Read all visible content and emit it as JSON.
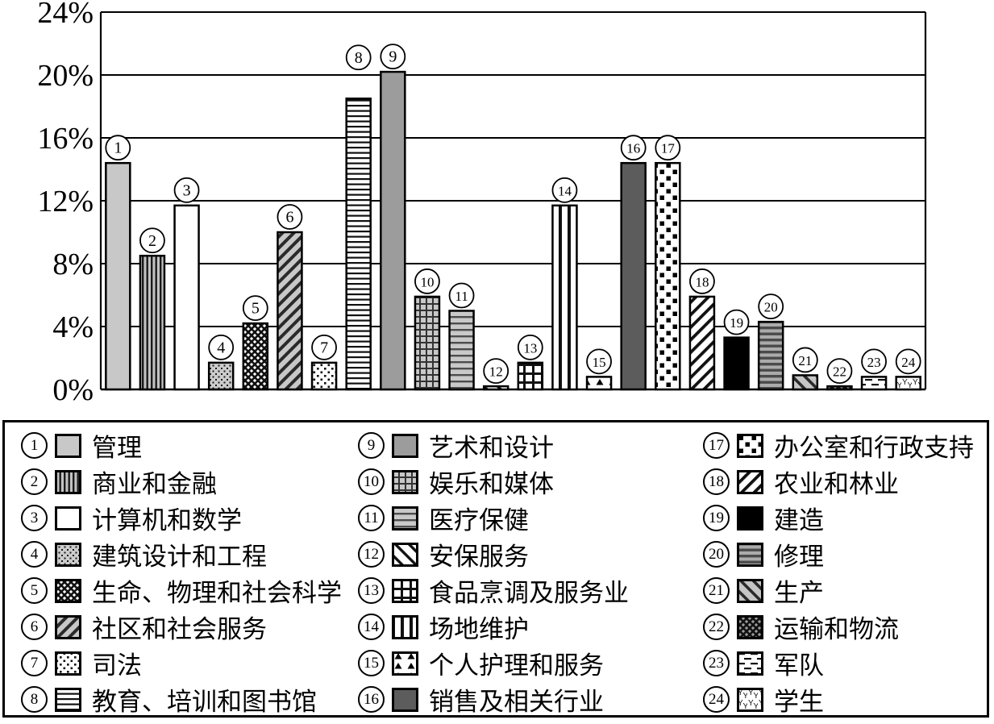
{
  "page": {
    "background": "#ffffff",
    "ink_color": "#000000"
  },
  "chart_data": {
    "type": "bar",
    "title": "",
    "xlabel": "",
    "ylabel": "",
    "ylim": [
      0,
      24
    ],
    "ytick_step": 4,
    "ytick_labels": [
      "0%",
      "4%",
      "8%",
      "12%",
      "16%",
      "20%",
      "24%"
    ],
    "grid": true,
    "legend_position": "bottom-box",
    "bar_outline_color": "#000000",
    "categories": [
      1,
      2,
      3,
      4,
      5,
      6,
      7,
      8,
      9,
      10,
      11,
      12,
      13,
      14,
      15,
      16,
      17,
      18,
      19,
      20,
      21,
      22,
      23,
      24
    ],
    "items": [
      {
        "n": 1,
        "label": "管理",
        "value": 14.4,
        "fill": "#c8c8c8"
      },
      {
        "n": 2,
        "label": "商业和金融",
        "value": 8.5,
        "fill": "vstripe-gray"
      },
      {
        "n": 3,
        "label": "计算机和数学",
        "value": 11.7,
        "fill": "#ffffff"
      },
      {
        "n": 4,
        "label": "建筑设计和工程",
        "value": 1.7,
        "fill": "dots-gray"
      },
      {
        "n": 5,
        "label": "生命、物理和社会科学",
        "value": 4.2,
        "fill": "crosshatch-white"
      },
      {
        "n": 6,
        "label": "社区和社会服务",
        "value": 10.0,
        "fill": "diag-gray"
      },
      {
        "n": 7,
        "label": "司法",
        "value": 1.7,
        "fill": "dots-white"
      },
      {
        "n": 8,
        "label": "教育、培训和图书馆",
        "value": 18.5,
        "fill": "hlines-white"
      },
      {
        "n": 9,
        "label": "艺术和设计",
        "value": 20.2,
        "fill": "#9c9c9c"
      },
      {
        "n": 10,
        "label": "娱乐和媒体",
        "value": 5.9,
        "fill": "grid-gray"
      },
      {
        "n": 11,
        "label": "医疗保健",
        "value": 5.0,
        "fill": "hlines-gray"
      },
      {
        "n": 12,
        "label": "安保服务",
        "value": 0.2,
        "fill": "diagback-white"
      },
      {
        "n": 13,
        "label": "食品烹调及服务业",
        "value": 1.7,
        "fill": "grid-white"
      },
      {
        "n": 14,
        "label": "场地维护",
        "value": 11.7,
        "fill": "vlines-white"
      },
      {
        "n": 15,
        "label": "个人护理和服务",
        "value": 0.8,
        "fill": "tri-white"
      },
      {
        "n": 16,
        "label": "销售及相关行业",
        "value": 14.4,
        "fill": "#5c5c5c"
      },
      {
        "n": 17,
        "label": "办公室和行政支持",
        "value": 14.4,
        "fill": "checker-white"
      },
      {
        "n": 18,
        "label": "农业和林业",
        "value": 5.9,
        "fill": "diag-white"
      },
      {
        "n": 19,
        "label": "建造",
        "value": 3.3,
        "fill": "#000000"
      },
      {
        "n": 20,
        "label": "修理",
        "value": 4.3,
        "fill": "hlines-darkgray"
      },
      {
        "n": 21,
        "label": "生产",
        "value": 0.9,
        "fill": "diagback-gray"
      },
      {
        "n": 22,
        "label": "运输和物流",
        "value": 0.2,
        "fill": "crosshatch-gray"
      },
      {
        "n": 23,
        "label": "军队",
        "value": 0.8,
        "fill": "dash-white"
      },
      {
        "n": 24,
        "label": "学生",
        "value": 0.8,
        "fill": "y-white"
      }
    ],
    "label_dy": {
      "8": -32
    }
  }
}
